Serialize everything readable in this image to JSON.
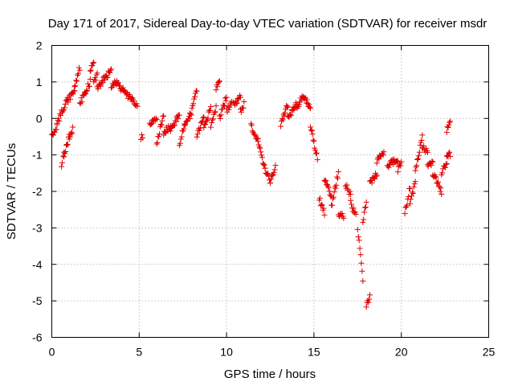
{
  "chart_data": {
    "type": "scatter",
    "title": "Day 171 of 2017, Sidereal Day-to-day VTEC variation (SDTVAR) for receiver msdr",
    "xlabel": "GPS time / hours",
    "ylabel": "SDTVAR / TECUs",
    "xlim": [
      0,
      25
    ],
    "ylim": [
      -6,
      2
    ],
    "xticks": [
      0,
      5,
      10,
      15,
      20,
      25
    ],
    "yticks": [
      -6,
      -5,
      -4,
      -3,
      -2,
      -1,
      0,
      1,
      2
    ],
    "grid": true,
    "marker": "+",
    "color": "#e00000",
    "segments": [
      {
        "x0": 0.0,
        "x1": 0.3,
        "y0": -0.5,
        "y1": -0.2
      },
      {
        "x0": 0.3,
        "x1": 0.55,
        "y0": -0.2,
        "y1": 0.2
      },
      {
        "x0": 0.55,
        "x1": 0.7,
        "y0": -1.3,
        "y1": -1.0
      },
      {
        "x0": 0.7,
        "x1": 1.0,
        "y0": -1.0,
        "y1": -0.5
      },
      {
        "x0": 1.0,
        "x1": 1.2,
        "y0": -0.5,
        "y1": -0.3
      },
      {
        "x0": 0.6,
        "x1": 0.9,
        "y0": 0.2,
        "y1": 0.6
      },
      {
        "x0": 0.9,
        "x1": 1.3,
        "y0": 0.5,
        "y1": 0.7
      },
      {
        "x0": 1.3,
        "x1": 1.6,
        "y0": 0.8,
        "y1": 1.4
      },
      {
        "x0": 1.6,
        "x1": 1.9,
        "y0": 0.4,
        "y1": 0.7
      },
      {
        "x0": 1.9,
        "x1": 2.2,
        "y0": 0.7,
        "y1": 1.0
      },
      {
        "x0": 2.2,
        "x1": 2.4,
        "y0": 1.3,
        "y1": 1.55
      },
      {
        "x0": 2.4,
        "x1": 2.6,
        "y0": 1.0,
        "y1": 1.2
      },
      {
        "x0": 2.6,
        "x1": 3.0,
        "y0": 0.8,
        "y1": 1.1
      },
      {
        "x0": 3.0,
        "x1": 3.4,
        "y0": 1.1,
        "y1": 1.3
      },
      {
        "x0": 3.4,
        "x1": 3.8,
        "y0": 0.9,
        "y1": 1.0
      },
      {
        "x0": 3.8,
        "x1": 4.2,
        "y0": 0.9,
        "y1": 0.7
      },
      {
        "x0": 4.2,
        "x1": 4.6,
        "y0": 0.7,
        "y1": 0.5
      },
      {
        "x0": 4.6,
        "x1": 4.9,
        "y0": 0.5,
        "y1": 0.3
      },
      {
        "x0": 5.1,
        "x1": 5.2,
        "y0": -0.5,
        "y1": -0.5
      },
      {
        "x0": 5.6,
        "x1": 6.0,
        "y0": -0.2,
        "y1": 0.0
      },
      {
        "x0": 6.0,
        "x1": 6.4,
        "y0": -0.7,
        "y1": 0.1
      },
      {
        "x0": 6.4,
        "x1": 6.8,
        "y0": -0.4,
        "y1": -0.2
      },
      {
        "x0": 6.8,
        "x1": 7.3,
        "y0": -0.3,
        "y1": 0.1
      },
      {
        "x0": 7.3,
        "x1": 7.6,
        "y0": -0.7,
        "y1": -0.2
      },
      {
        "x0": 7.6,
        "x1": 7.9,
        "y0": -0.2,
        "y1": 0.1
      },
      {
        "x0": 7.9,
        "x1": 8.3,
        "y0": 0.0,
        "y1": 0.8
      },
      {
        "x0": 8.3,
        "x1": 8.7,
        "y0": -0.5,
        "y1": 0.0
      },
      {
        "x0": 8.7,
        "x1": 9.1,
        "y0": -0.3,
        "y1": 0.3
      },
      {
        "x0": 9.1,
        "x1": 9.4,
        "y0": -0.2,
        "y1": 0.3
      },
      {
        "x0": 9.4,
        "x1": 9.6,
        "y0": 0.8,
        "y1": 1.1
      },
      {
        "x0": 9.6,
        "x1": 10.0,
        "y0": 0.0,
        "y1": 0.6
      },
      {
        "x0": 10.0,
        "x1": 10.3,
        "y0": 0.2,
        "y1": 0.4
      },
      {
        "x0": 10.4,
        "x1": 10.8,
        "y0": 0.4,
        "y1": 0.6
      },
      {
        "x0": 10.8,
        "x1": 11.0,
        "y0": 0.2,
        "y1": 0.4
      },
      {
        "x0": 11.4,
        "x1": 11.8,
        "y0": -0.2,
        "y1": -0.6
      },
      {
        "x0": 11.8,
        "x1": 12.2,
        "y0": -0.6,
        "y1": -1.4
      },
      {
        "x0": 12.2,
        "x1": 12.5,
        "y0": -1.4,
        "y1": -1.7
      },
      {
        "x0": 12.5,
        "x1": 12.8,
        "y0": -1.7,
        "y1": -1.3
      },
      {
        "x0": 13.1,
        "x1": 13.5,
        "y0": -0.2,
        "y1": 0.4
      },
      {
        "x0": 13.5,
        "x1": 14.0,
        "y0": 0.0,
        "y1": 0.4
      },
      {
        "x0": 14.0,
        "x1": 14.4,
        "y0": 0.3,
        "y1": 0.6
      },
      {
        "x0": 14.4,
        "x1": 14.8,
        "y0": 0.6,
        "y1": 0.3
      },
      {
        "x0": 14.8,
        "x1": 15.2,
        "y0": -0.2,
        "y1": -1.1
      },
      {
        "x0": 15.3,
        "x1": 15.6,
        "y0": -2.2,
        "y1": -2.6
      },
      {
        "x0": 15.6,
        "x1": 16.0,
        "y0": -1.7,
        "y1": -2.1
      },
      {
        "x0": 16.0,
        "x1": 16.4,
        "y0": -2.4,
        "y1": -1.5
      },
      {
        "x0": 16.4,
        "x1": 16.7,
        "y0": -2.6,
        "y1": -2.7
      },
      {
        "x0": 16.8,
        "x1": 17.1,
        "y0": -1.8,
        "y1": -2.1
      },
      {
        "x0": 17.1,
        "x1": 17.4,
        "y0": -2.3,
        "y1": -2.7
      },
      {
        "x0": 17.5,
        "x1": 17.8,
        "y0": -3.0,
        "y1": -4.4
      },
      {
        "x0": 17.8,
        "x1": 18.0,
        "y0": -2.8,
        "y1": -2.3
      },
      {
        "x0": 18.0,
        "x1": 18.2,
        "y0": -5.1,
        "y1": -4.9
      },
      {
        "x0": 18.2,
        "x1": 18.6,
        "y0": -1.8,
        "y1": -1.5
      },
      {
        "x0": 18.6,
        "x1": 19.0,
        "y0": -1.2,
        "y1": -0.9
      },
      {
        "x0": 19.2,
        "x1": 19.8,
        "y0": -1.3,
        "y1": -1.1
      },
      {
        "x0": 19.8,
        "x1": 20.0,
        "y0": -1.4,
        "y1": -1.2
      },
      {
        "x0": 20.2,
        "x1": 20.5,
        "y0": -2.6,
        "y1": -1.9
      },
      {
        "x0": 20.5,
        "x1": 20.8,
        "y0": -2.3,
        "y1": -1.8
      },
      {
        "x0": 20.8,
        "x1": 21.2,
        "y0": -1.4,
        "y1": -0.5
      },
      {
        "x0": 21.2,
        "x1": 21.5,
        "y0": -0.8,
        "y1": -0.9
      },
      {
        "x0": 21.5,
        "x1": 21.8,
        "y0": -1.3,
        "y1": -1.2
      },
      {
        "x0": 21.8,
        "x1": 22.3,
        "y0": -1.5,
        "y1": -2.0
      },
      {
        "x0": 22.3,
        "x1": 22.6,
        "y0": -1.5,
        "y1": -1.2
      },
      {
        "x0": 22.6,
        "x1": 22.8,
        "y0": -0.3,
        "y1": -0.1
      },
      {
        "x0": 22.6,
        "x1": 22.8,
        "y0": -1.0,
        "y1": -1.0
      }
    ]
  }
}
